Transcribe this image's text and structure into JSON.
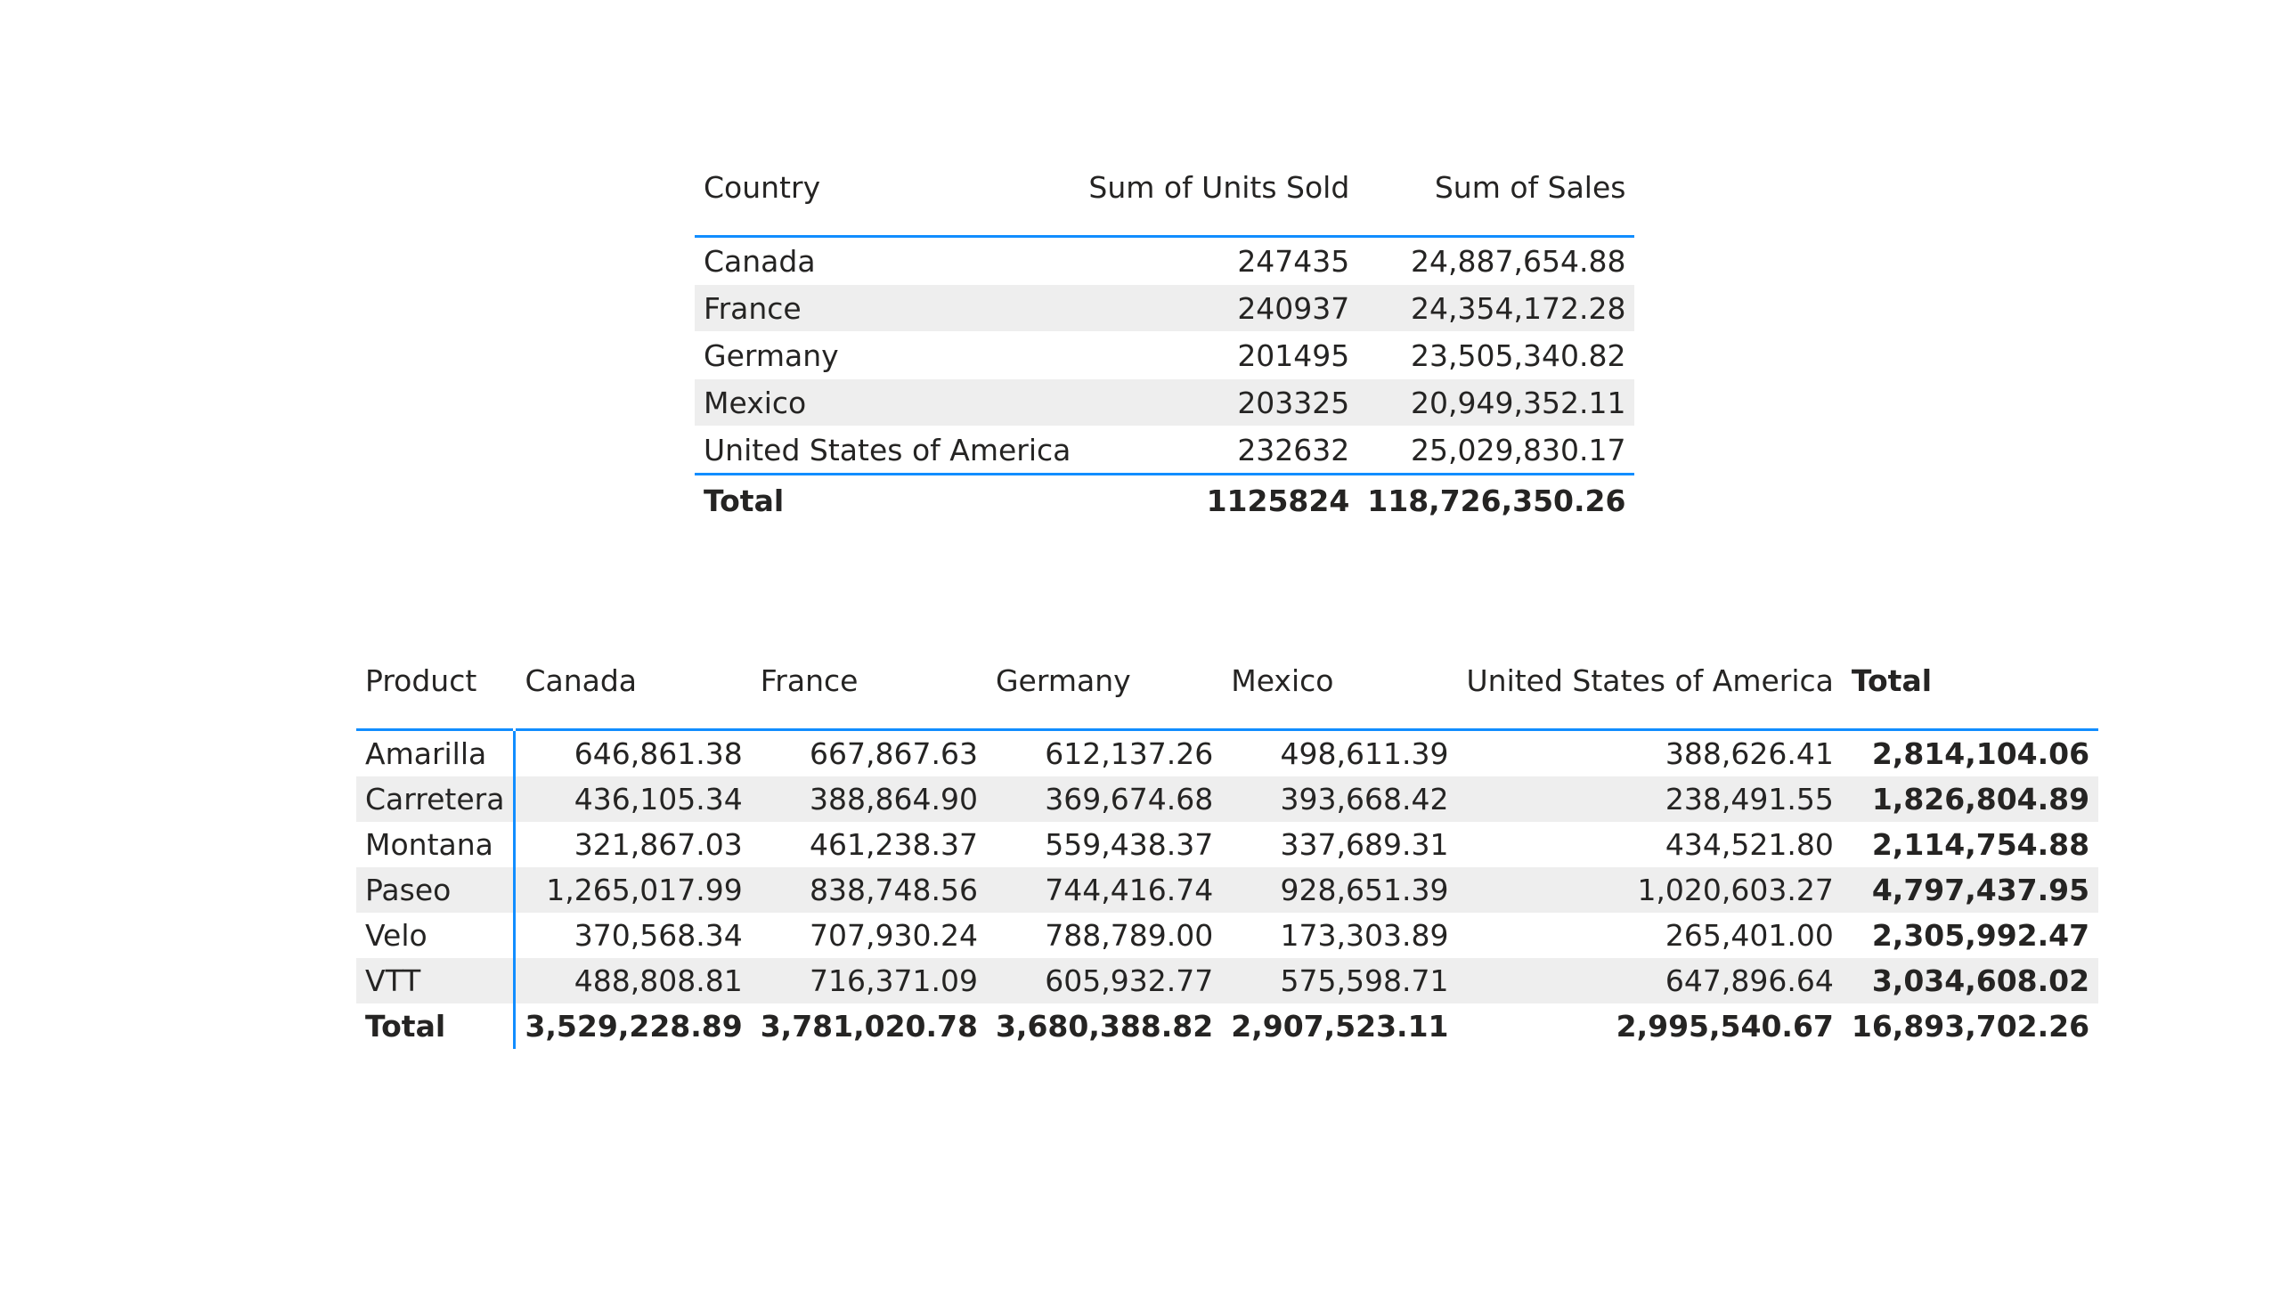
{
  "table1": {
    "headers": {
      "country": "Country",
      "units": "Sum of Units Sold",
      "sales": "Sum of Sales"
    },
    "rows": [
      {
        "country": "Canada",
        "units": "247435",
        "sales": "24,887,654.88"
      },
      {
        "country": "France",
        "units": "240937",
        "sales": "24,354,172.28"
      },
      {
        "country": "Germany",
        "units": "201495",
        "sales": "23,505,340.82"
      },
      {
        "country": "Mexico",
        "units": "203325",
        "sales": "20,949,352.11"
      },
      {
        "country": "United States of America",
        "units": "232632",
        "sales": "25,029,830.17"
      }
    ],
    "total": {
      "label": "Total",
      "units": "1125824",
      "sales": "118,726,350.26"
    }
  },
  "table2": {
    "headers": {
      "product": "Product",
      "canada": "Canada",
      "france": "France",
      "germany": "Germany",
      "mexico": "Mexico",
      "usa": "United States of America",
      "total": "Total"
    },
    "rows": [
      {
        "product": "Amarilla",
        "canada": "646,861.38",
        "france": "667,867.63",
        "germany": "612,137.26",
        "mexico": "498,611.39",
        "usa": "388,626.41",
        "total": "2,814,104.06"
      },
      {
        "product": "Carretera",
        "canada": "436,105.34",
        "france": "388,864.90",
        "germany": "369,674.68",
        "mexico": "393,668.42",
        "usa": "238,491.55",
        "total": "1,826,804.89"
      },
      {
        "product": "Montana",
        "canada": "321,867.03",
        "france": "461,238.37",
        "germany": "559,438.37",
        "mexico": "337,689.31",
        "usa": "434,521.80",
        "total": "2,114,754.88"
      },
      {
        "product": "Paseo",
        "canada": "1,265,017.99",
        "france": "838,748.56",
        "germany": "744,416.74",
        "mexico": "928,651.39",
        "usa": "1,020,603.27",
        "total": "4,797,437.95"
      },
      {
        "product": "Velo",
        "canada": "370,568.34",
        "france": "707,930.24",
        "germany": "788,789.00",
        "mexico": "173,303.89",
        "usa": "265,401.00",
        "total": "2,305,992.47"
      },
      {
        "product": "VTT",
        "canada": "488,808.81",
        "france": "716,371.09",
        "germany": "605,932.77",
        "mexico": "575,598.71",
        "usa": "647,896.64",
        "total": "3,034,608.02"
      }
    ],
    "total": {
      "label": "Total",
      "canada": "3,529,228.89",
      "france": "3,781,020.78",
      "germany": "3,680,388.82",
      "mexico": "2,907,523.11",
      "usa": "2,995,540.67",
      "total": "16,893,702.26"
    }
  }
}
